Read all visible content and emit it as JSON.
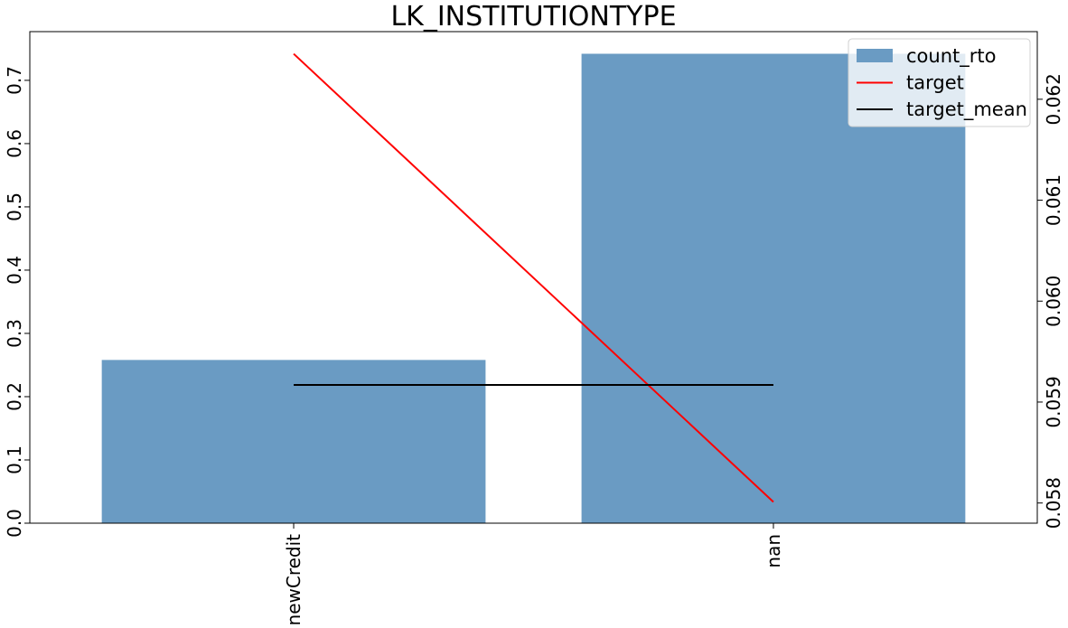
{
  "chart_data": {
    "type": "bar",
    "title": "LK_INSTITUTIONTYPE",
    "categories": [
      "newCredit",
      "nan"
    ],
    "series": [
      {
        "name": "count_rto",
        "type": "bar",
        "axis": "left",
        "color": "#6a9bc3",
        "values": [
          0.258,
          0.742
        ]
      },
      {
        "name": "target",
        "type": "line",
        "axis": "right",
        "color": "#ff0000",
        "values": [
          0.06245,
          0.05801
        ]
      },
      {
        "name": "target_mean",
        "type": "line",
        "axis": "right",
        "color": "#000000",
        "values": [
          0.05917,
          0.05917
        ]
      }
    ],
    "y_left": {
      "ylim": [
        0.0,
        0.777
      ],
      "ticks": [
        0.0,
        0.1,
        0.2,
        0.3,
        0.4,
        0.5,
        0.6,
        0.7
      ],
      "tick_labels": [
        "0.0",
        "0.1",
        "0.2",
        "0.3",
        "0.4",
        "0.5",
        "0.6",
        "0.7"
      ]
    },
    "y_right": {
      "ylim": [
        0.0578,
        0.06267
      ],
      "ticks": [
        0.058,
        0.059,
        0.06,
        0.061,
        0.062
      ],
      "tick_labels": [
        "0.058",
        "0.059",
        "0.060",
        "0.061",
        "0.062"
      ]
    },
    "xlabel": "",
    "ylabel": "",
    "grid": false,
    "legend_position": "top-right",
    "legend_entries": [
      "count_rto",
      "target",
      "target_mean"
    ]
  }
}
